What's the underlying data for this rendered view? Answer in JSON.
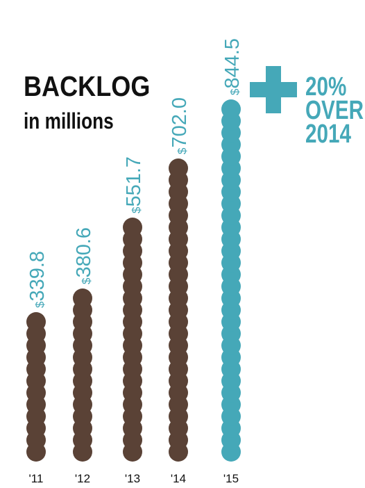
{
  "chart_data": {
    "type": "bar",
    "title": "BACKLOG",
    "subtitle": "in millions",
    "categories": [
      "'11",
      "'12",
      "'13",
      "'14",
      "'15"
    ],
    "values": [
      339.8,
      380.6,
      551.7,
      702.0,
      844.5
    ],
    "value_labels": [
      "$339.8",
      "$380.6",
      "$551.7",
      "$702.0",
      "$844.5"
    ],
    "highlight_index": 4,
    "colors": {
      "base": "#5a4236",
      "highlight": "#45a8b8",
      "text": "#111111"
    },
    "callout": {
      "symbol": "plus",
      "lines": [
        "20%",
        "OVER",
        "2014"
      ]
    },
    "grid": false,
    "legend": "none"
  }
}
